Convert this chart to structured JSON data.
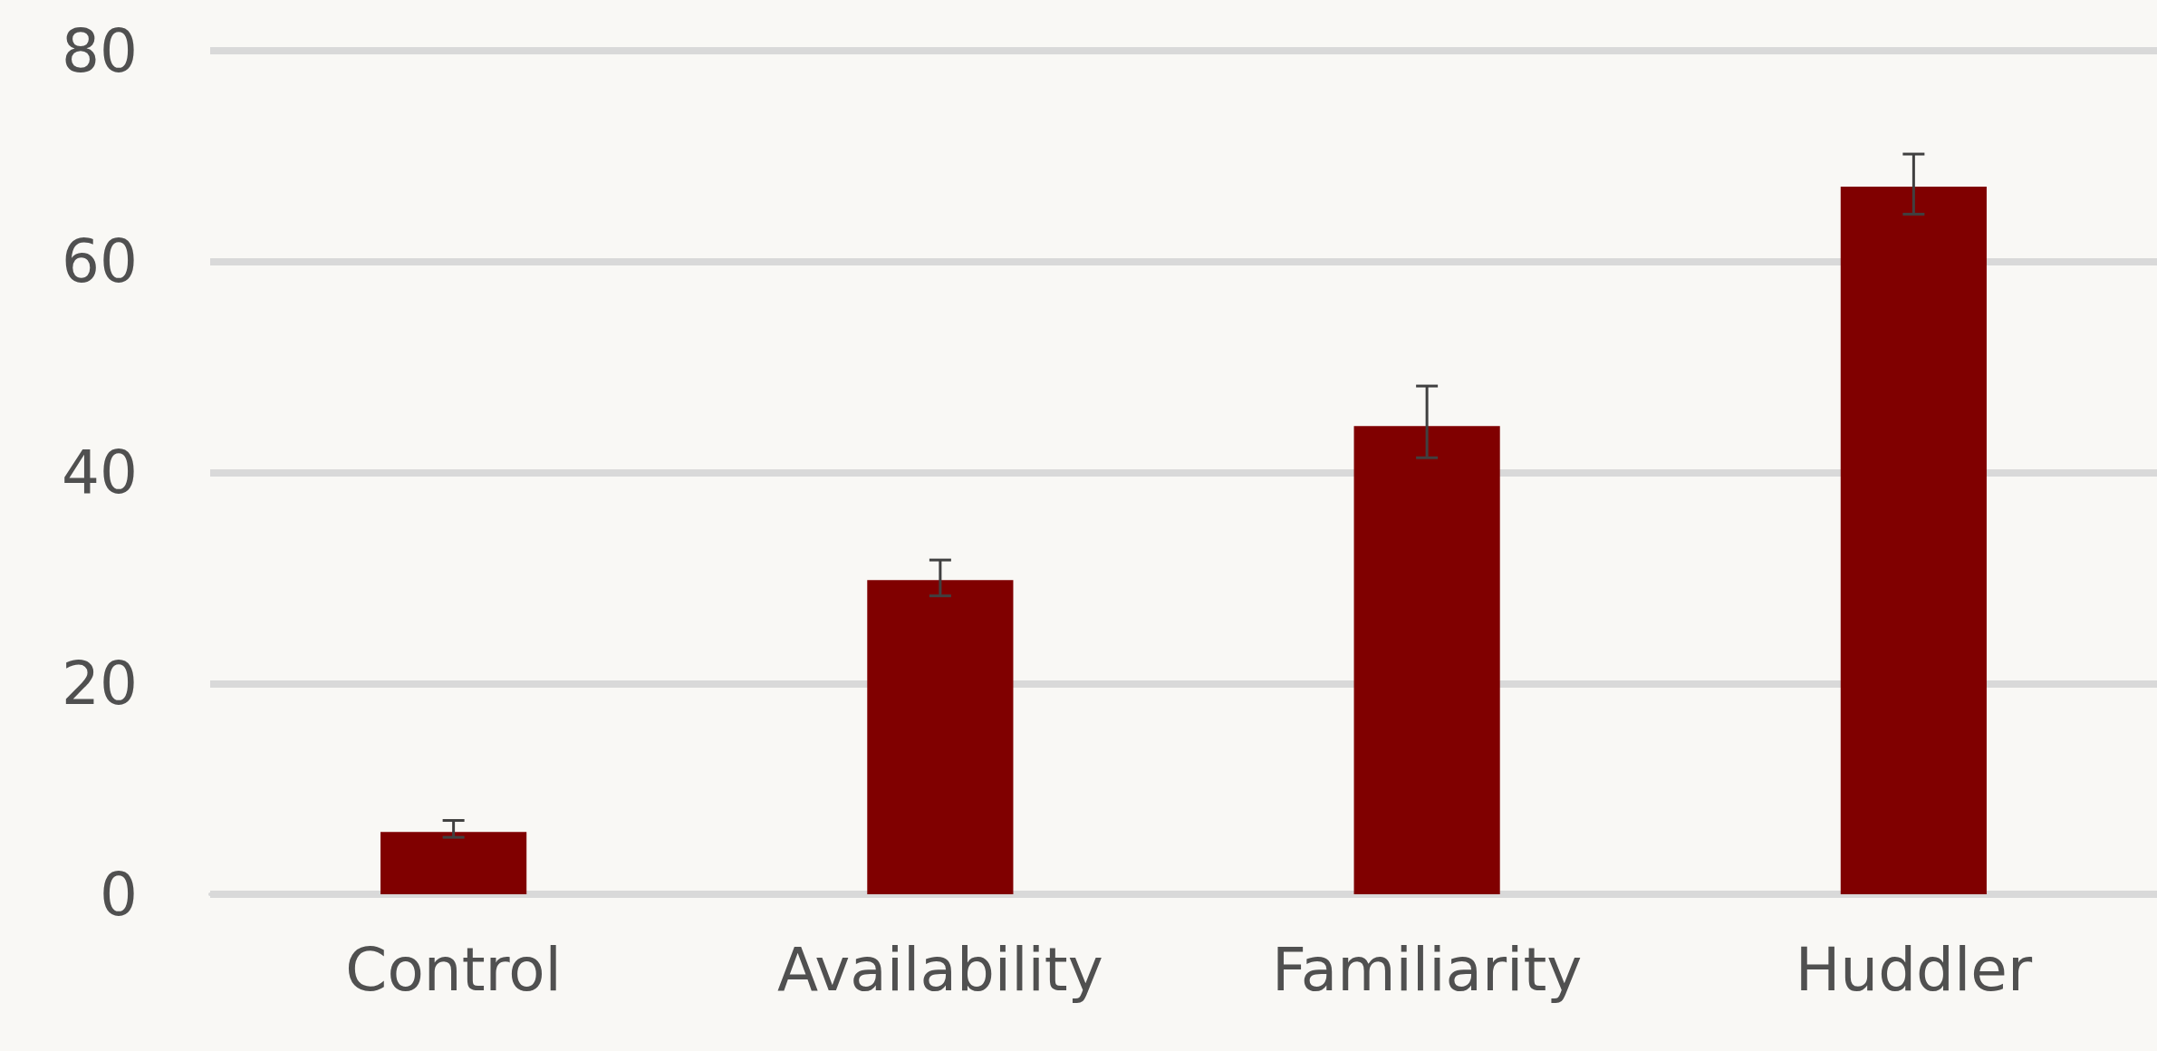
{
  "chart_data": {
    "type": "bar",
    "categories": [
      "Control",
      "Availability",
      "Familiarity",
      "Huddler"
    ],
    "values": [
      5.9,
      29.8,
      44.4,
      67.1
    ],
    "errors": [
      [
        5.4,
        7.0
      ],
      [
        28.3,
        31.7
      ],
      [
        41.4,
        48.2
      ],
      [
        64.5,
        70.2
      ]
    ],
    "color": "#800000",
    "ylim": [
      0,
      80
    ],
    "yticks": [
      0,
      20,
      40,
      60,
      80
    ],
    "grid": "y"
  }
}
